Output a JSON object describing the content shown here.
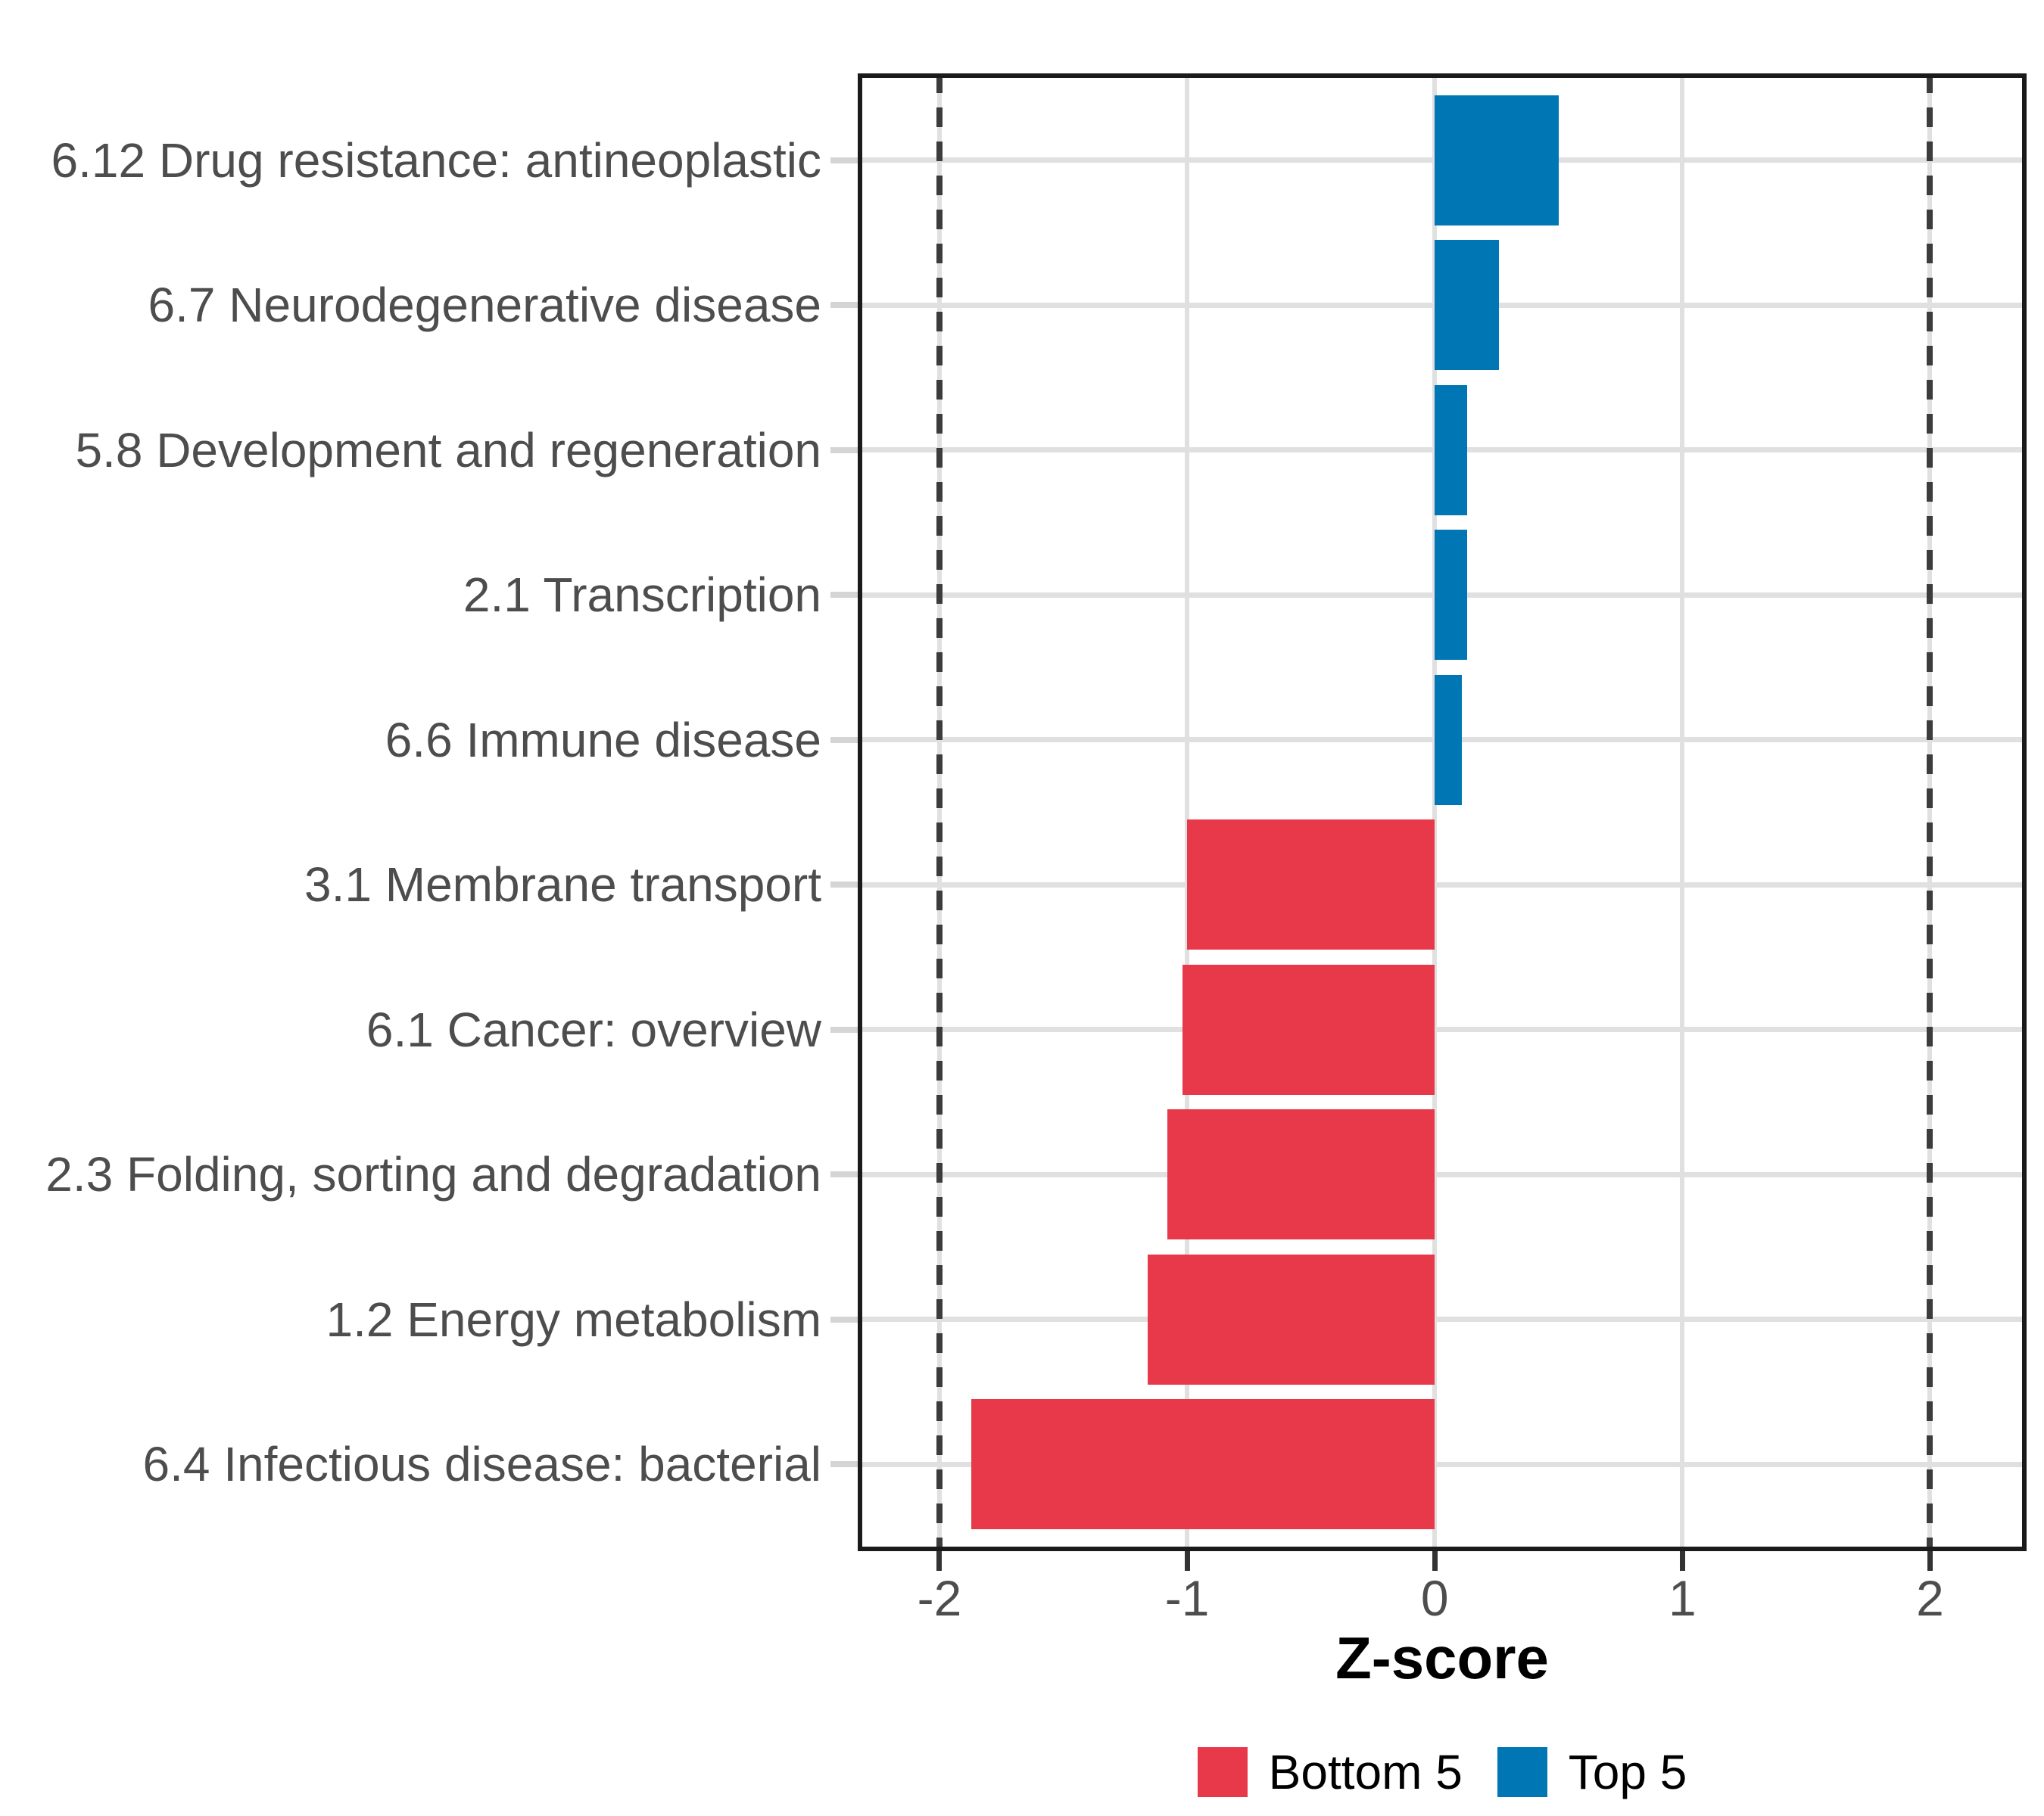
{
  "chart_data": {
    "type": "bar",
    "orientation": "horizontal",
    "title": "",
    "xlabel": "Z-score",
    "categories": [
      "6.12 Drug resistance: antineoplastic",
      "6.7 Neurodegenerative disease",
      "5.8 Development and regeneration",
      "2.1 Transcription",
      "6.6 Immune disease",
      "3.1 Membrane transport",
      "6.1 Cancer: overview",
      "2.3 Folding, sorting and degradation",
      "1.2 Energy metabolism",
      "6.4 Infectious disease: bacterial"
    ],
    "values": [
      0.5,
      0.26,
      0.13,
      0.13,
      0.11,
      -1.0,
      -1.02,
      -1.08,
      -1.16,
      -1.87
    ],
    "bar_groups": [
      "Top 5",
      "Top 5",
      "Top 5",
      "Top 5",
      "Top 5",
      "Bottom 5",
      "Bottom 5",
      "Bottom 5",
      "Bottom 5",
      "Bottom 5"
    ],
    "x_ticks": [
      -2,
      -1,
      0,
      1,
      2
    ],
    "x_tick_labels": [
      "-2",
      "-1",
      "0",
      "1",
      "2"
    ],
    "xlim": [
      -2.33,
      2.39
    ],
    "reference_lines": [
      -2,
      2
    ],
    "reference_line_style": "dashed",
    "grid": true,
    "legend": {
      "position": "bottom",
      "items": [
        {
          "label": "Bottom 5",
          "color": "#E8394A"
        },
        {
          "label": "Top 5",
          "color": "#0076B4"
        }
      ]
    }
  },
  "colors": {
    "top5": "#0076B4",
    "bottom5": "#E8394A",
    "grid": "#E0E0E0",
    "dashed_line": "#3C3C3C",
    "panel_border": "#1A1A1A",
    "axis_text": "#4D4D4D",
    "background": "#FFFFFF"
  }
}
